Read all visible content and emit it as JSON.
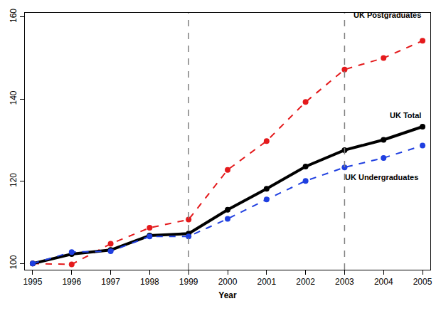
{
  "chart_data": {
    "type": "line",
    "x_label": "Year",
    "x": [
      1995,
      1996,
      1997,
      1998,
      1999,
      2000,
      2001,
      2002,
      2003,
      2004,
      2005
    ],
    "series": [
      {
        "name": "UK Postgraduates",
        "color": "#e41a1c",
        "line_style": "dashed",
        "marker": "circle",
        "values": [
          100,
          99.8,
          104.8,
          108.7,
          110.7,
          122.8,
          129.8,
          139.3,
          147.2,
          150.0,
          154.2
        ]
      },
      {
        "name": "UK Total",
        "color": "#000000",
        "line_style": "solid",
        "marker": "circle",
        "values": [
          100,
          102.3,
          103.3,
          106.8,
          107.3,
          113.1,
          118.2,
          123.6,
          127.6,
          130.1,
          133.3
        ]
      },
      {
        "name": "UK Undergraduates",
        "color": "#1f3fe0",
        "line_style": "dashed",
        "marker": "circle",
        "values": [
          100,
          102.8,
          103.0,
          106.6,
          106.6,
          110.9,
          115.6,
          120.1,
          123.4,
          125.7,
          128.7
        ]
      }
    ],
    "vlines": [
      1999,
      2003
    ],
    "xlim": [
      1994.8,
      2005.2
    ],
    "xticks": [
      1995,
      1996,
      1997,
      1998,
      1999,
      2000,
      2001,
      2002,
      2003,
      2004,
      2005
    ],
    "ylim": [
      98.5,
      161
    ],
    "yticks": [
      100,
      120,
      140,
      160
    ],
    "grid": false
  }
}
